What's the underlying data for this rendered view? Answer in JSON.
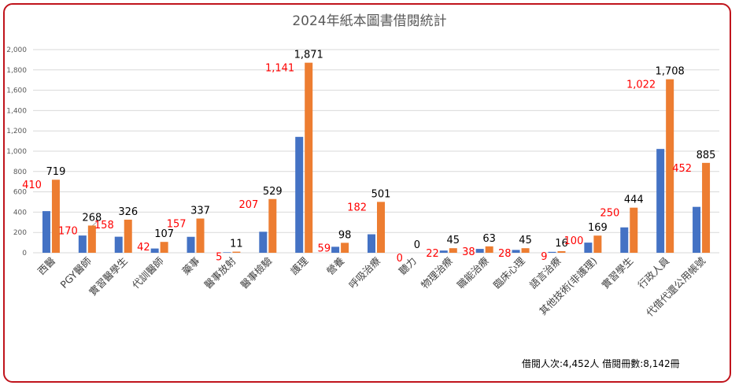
{
  "chart_data": {
    "type": "bar",
    "title": "2024年紙本圖書借閱統計",
    "xlabel": "",
    "ylabel": "",
    "ylim": [
      0,
      2000
    ],
    "yticks": [
      0,
      200,
      400,
      600,
      800,
      1000,
      1200,
      1400,
      1600,
      1800,
      2000
    ],
    "ytick_labels": [
      "0",
      "200",
      "400",
      "600",
      "800",
      "1,000",
      "1,200",
      "1,400",
      "1,600",
      "1,800",
      "2,000"
    ],
    "grid": true,
    "legend": "none",
    "categories": [
      "西醫",
      "PGY醫師",
      "實習醫學生",
      "代訓醫師",
      "藥事",
      "醫事放射",
      "醫事檢驗",
      "護理",
      "營養",
      "呼吸治療",
      "聽力",
      "物理治療",
      "職能治療",
      "臨床心理",
      "語言治療",
      "其他技術(非護理)",
      "實習學生",
      "行政人員",
      "代借代還公用帳號"
    ],
    "series": [
      {
        "values": [
          410,
          170,
          158,
          42,
          157,
          5,
          207,
          1141,
          59,
          182,
          0,
          22,
          38,
          28,
          9,
          100,
          250,
          1022,
          452
        ],
        "labels": [
          "410",
          "170",
          "158",
          "42",
          "157",
          "5",
          "207",
          "1,141",
          "59",
          "182",
          "0",
          "22",
          "38",
          "28",
          "9",
          "100",
          "250",
          "1,022",
          "452"
        ]
      },
      {
        "values": [
          719,
          268,
          326,
          107,
          337,
          11,
          529,
          1871,
          98,
          501,
          0,
          45,
          63,
          45,
          16,
          169,
          444,
          1708,
          885
        ],
        "labels": [
          "719",
          "268",
          "326",
          "107",
          "337",
          "11",
          "529",
          "1,871",
          "98",
          "501",
          "0",
          "45",
          "63",
          "45",
          "16",
          "169",
          "444",
          "1,708",
          "885"
        ]
      }
    ],
    "colors": {
      "series1": "#4472c4",
      "series2": "#ed7d31",
      "series1_label": "#ff0000",
      "series2_label": "#000000",
      "grid": "#d9d9d9",
      "border": "#c0141c"
    }
  },
  "footer": {
    "summary": "借閱人次:4,452人  借閱冊數:8,142冊"
  }
}
